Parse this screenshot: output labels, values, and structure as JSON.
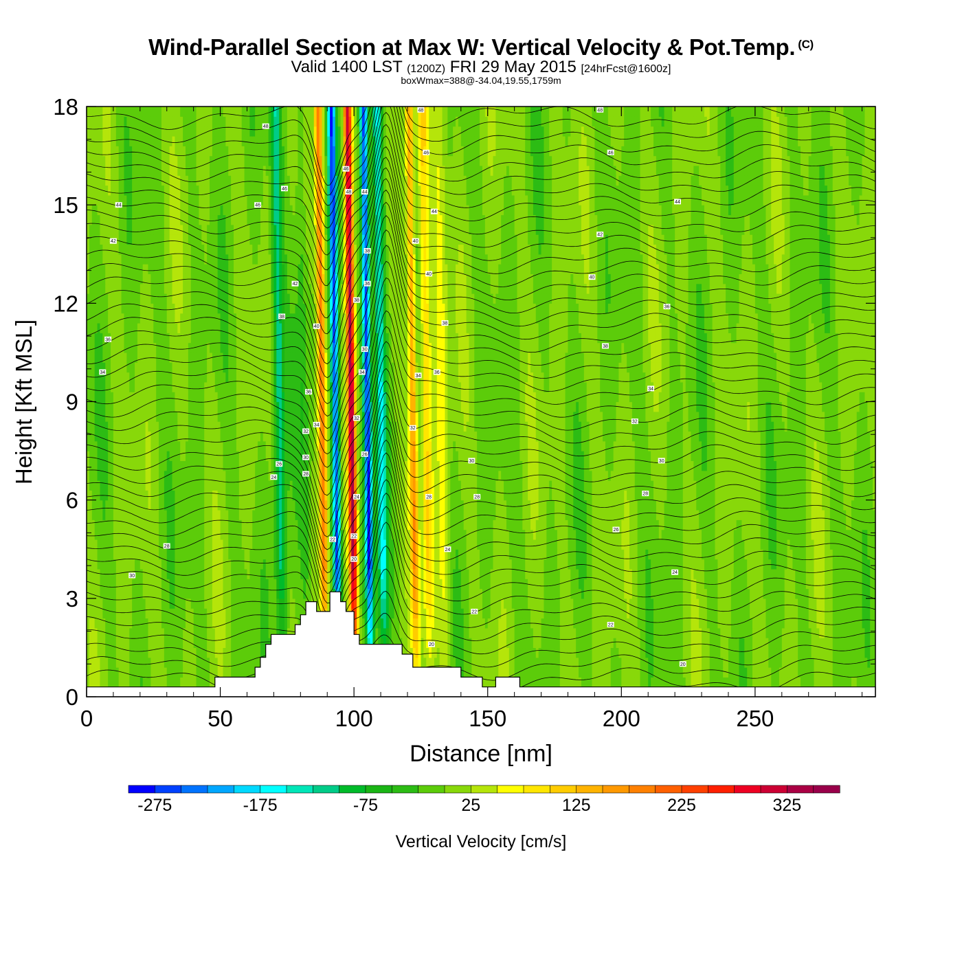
{
  "header": {
    "title": "Wind-Parallel Section at Max W: Vertical Velocity & Pot.Temp.",
    "copyright": "(C)",
    "valid_prefix": "Valid 1400 LST",
    "valid_utc": "(1200Z)",
    "valid_date": "FRI 29 May 2015",
    "forecast": "[24hrFcst@1600z]",
    "box_wmax": "boxWmax=388@-34.04,19.55,1759m"
  },
  "chart_data": {
    "type": "heatmap",
    "xlabel": "Distance [nm]",
    "ylabel": "Height [Kft MSL]",
    "xlim": [
      0,
      295
    ],
    "ylim": [
      0,
      18
    ],
    "xticks": [
      0,
      50,
      100,
      150,
      200,
      250
    ],
    "yticks": [
      0,
      3,
      6,
      9,
      12,
      15,
      18
    ],
    "colorbar": {
      "label": "Vertical Velocity [cm/s]",
      "tick_labels": [
        -275,
        -175,
        -75,
        25,
        125,
        225,
        325
      ],
      "min": -300,
      "max": 375,
      "step": 25,
      "colors": [
        "#0000ff",
        "#0041ff",
        "#0073ff",
        "#00a7ff",
        "#00d9ff",
        "#00ffff",
        "#00e6b8",
        "#00cc88",
        "#00bb2a",
        "#1ab515",
        "#2cbc14",
        "#5ccc0a",
        "#88d80a",
        "#b5e50a",
        "#ffff00",
        "#ffe600",
        "#ffcc00",
        "#ffb300",
        "#ff9900",
        "#ff8000",
        "#ff6000",
        "#ff4000",
        "#ff1f00",
        "#ee0022",
        "#cc0033",
        "#aa0044",
        "#99004a"
      ]
    },
    "velocity_features": [
      {
        "x": 72,
        "w": 2,
        "v": -120
      },
      {
        "x": 81,
        "w": 2,
        "v": -40
      },
      {
        "x": 88,
        "w": 1.5,
        "v": 200
      },
      {
        "x": 93,
        "w": 1.5,
        "v": -275
      },
      {
        "x": 99,
        "w": 1.5,
        "v": 350
      },
      {
        "x": 105,
        "w": 1.5,
        "v": -275
      },
      {
        "x": 110,
        "w": 2,
        "v": -150
      },
      {
        "x": 122,
        "w": 1.5,
        "v": 160
      },
      {
        "x": 127,
        "w": 2,
        "v": 100
      },
      {
        "x": 133,
        "w": 2.5,
        "v": 60
      }
    ],
    "terrain_kft": [
      [
        0,
        0.3
      ],
      [
        48,
        0.3
      ],
      [
        48,
        0.6
      ],
      [
        63,
        0.6
      ],
      [
        63,
        0.9
      ],
      [
        65,
        0.9
      ],
      [
        65,
        1.2
      ],
      [
        67,
        1.2
      ],
      [
        67,
        1.6
      ],
      [
        69,
        1.6
      ],
      [
        69,
        1.9
      ],
      [
        78,
        1.9
      ],
      [
        78,
        2.2
      ],
      [
        80,
        2.2
      ],
      [
        80,
        2.5
      ],
      [
        82,
        2.5
      ],
      [
        82,
        2.9
      ],
      [
        86,
        2.9
      ],
      [
        86,
        2.6
      ],
      [
        91,
        2.6
      ],
      [
        91,
        3.2
      ],
      [
        95,
        3.2
      ],
      [
        95,
        2.9
      ],
      [
        97,
        2.9
      ],
      [
        97,
        2.6
      ],
      [
        100,
        2.6
      ],
      [
        100,
        1.9
      ],
      [
        102,
        1.9
      ],
      [
        102,
        1.6
      ],
      [
        118,
        1.6
      ],
      [
        118,
        1.3
      ],
      [
        122,
        1.3
      ],
      [
        122,
        0.9
      ],
      [
        140,
        0.9
      ],
      [
        140,
        0.6
      ],
      [
        148,
        0.6
      ],
      [
        148,
        0.3
      ],
      [
        153,
        0.3
      ],
      [
        153,
        0.6
      ],
      [
        162,
        0.6
      ],
      [
        162,
        0.3
      ],
      [
        295,
        0.3
      ]
    ],
    "theta_contour_labels": [
      {
        "x": 12,
        "y": 15.0,
        "t": "44"
      },
      {
        "x": 10,
        "y": 13.9,
        "t": "42"
      },
      {
        "x": 8,
        "y": 10.9,
        "t": "36"
      },
      {
        "x": 6,
        "y": 9.9,
        "t": "34"
      },
      {
        "x": 30,
        "y": 4.6,
        "t": "28"
      },
      {
        "x": 17,
        "y": 3.7,
        "t": "30"
      },
      {
        "x": 67,
        "y": 17.4,
        "t": "48"
      },
      {
        "x": 64,
        "y": 15.0,
        "t": "46"
      },
      {
        "x": 74,
        "y": 15.5,
        "t": "46"
      },
      {
        "x": 78,
        "y": 12.6,
        "t": "42"
      },
      {
        "x": 73,
        "y": 11.6,
        "t": "38"
      },
      {
        "x": 86,
        "y": 11.3,
        "t": "40"
      },
      {
        "x": 83,
        "y": 9.3,
        "t": "36"
      },
      {
        "x": 82,
        "y": 8.1,
        "t": "32"
      },
      {
        "x": 72,
        "y": 7.1,
        "t": "26"
      },
      {
        "x": 70,
        "y": 6.7,
        "t": "24"
      },
      {
        "x": 82,
        "y": 7.3,
        "t": "30"
      },
      {
        "x": 82,
        "y": 6.8,
        "t": "28"
      },
      {
        "x": 86,
        "y": 8.3,
        "t": "34"
      },
      {
        "x": 92,
        "y": 4.8,
        "t": "22"
      },
      {
        "x": 97,
        "y": 16.1,
        "t": "46"
      },
      {
        "x": 98,
        "y": 15.4,
        "t": "48"
      },
      {
        "x": 104,
        "y": 15.4,
        "t": "44"
      },
      {
        "x": 105,
        "y": 13.6,
        "t": "38"
      },
      {
        "x": 105,
        "y": 12.6,
        "t": "36"
      },
      {
        "x": 101,
        "y": 12.1,
        "t": "38"
      },
      {
        "x": 104,
        "y": 10.6,
        "t": "30"
      },
      {
        "x": 103,
        "y": 9.9,
        "t": "34"
      },
      {
        "x": 101,
        "y": 8.5,
        "t": "32"
      },
      {
        "x": 104,
        "y": 7.4,
        "t": "26"
      },
      {
        "x": 101,
        "y": 6.1,
        "t": "24"
      },
      {
        "x": 100,
        "y": 4.9,
        "t": "22"
      },
      {
        "x": 100,
        "y": 4.2,
        "t": "20"
      },
      {
        "x": 125,
        "y": 17.9,
        "t": "48"
      },
      {
        "x": 127,
        "y": 16.6,
        "t": "46"
      },
      {
        "x": 130,
        "y": 14.8,
        "t": "44"
      },
      {
        "x": 123,
        "y": 13.9,
        "t": "40"
      },
      {
        "x": 128,
        "y": 12.9,
        "t": "40"
      },
      {
        "x": 134,
        "y": 11.4,
        "t": "38"
      },
      {
        "x": 131,
        "y": 9.9,
        "t": "36"
      },
      {
        "x": 124,
        "y": 9.8,
        "t": "34"
      },
      {
        "x": 122,
        "y": 8.2,
        "t": "32"
      },
      {
        "x": 128,
        "y": 6.1,
        "t": "28"
      },
      {
        "x": 135,
        "y": 4.5,
        "t": "24"
      },
      {
        "x": 144,
        "y": 7.2,
        "t": "30"
      },
      {
        "x": 146,
        "y": 6.1,
        "t": "28"
      },
      {
        "x": 145,
        "y": 2.6,
        "t": "22"
      },
      {
        "x": 129,
        "y": 1.6,
        "t": "20"
      },
      {
        "x": 192,
        "y": 17.9,
        "t": "48"
      },
      {
        "x": 196,
        "y": 16.6,
        "t": "46"
      },
      {
        "x": 192,
        "y": 14.1,
        "t": "42"
      },
      {
        "x": 189,
        "y": 12.8,
        "t": "40"
      },
      {
        "x": 194,
        "y": 10.7,
        "t": "38"
      },
      {
        "x": 221,
        "y": 15.1,
        "t": "44"
      },
      {
        "x": 217,
        "y": 11.9,
        "t": "36"
      },
      {
        "x": 211,
        "y": 9.4,
        "t": "34"
      },
      {
        "x": 205,
        "y": 8.4,
        "t": "32"
      },
      {
        "x": 215,
        "y": 7.2,
        "t": "30"
      },
      {
        "x": 209,
        "y": 6.2,
        "t": "28"
      },
      {
        "x": 198,
        "y": 5.1,
        "t": "26"
      },
      {
        "x": 196,
        "y": 2.2,
        "t": "22"
      },
      {
        "x": 220,
        "y": 3.8,
        "t": "24"
      },
      {
        "x": 223,
        "y": 1.0,
        "t": "20"
      }
    ]
  }
}
